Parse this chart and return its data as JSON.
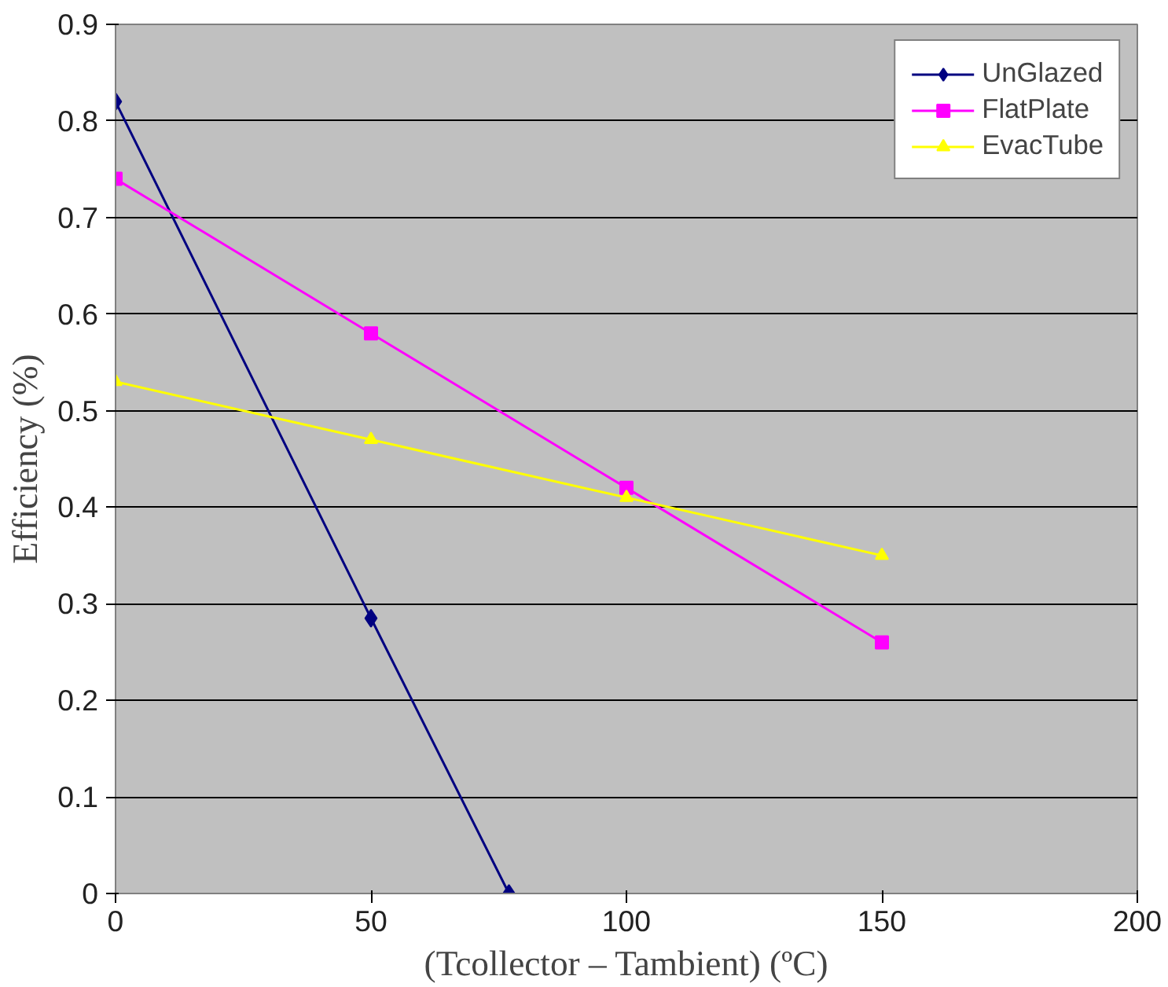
{
  "chart_data": {
    "type": "line",
    "xlabel": "(Tcollector – Tambient) (ºC)",
    "ylabel": "Efficiency (%)",
    "xlim": [
      0,
      200
    ],
    "xticks": [
      0,
      50,
      100,
      150,
      200
    ],
    "ylim": [
      0,
      0.9
    ],
    "yticks": [
      0,
      0.1,
      0.2,
      0.3,
      0.4,
      0.5,
      0.6,
      0.7,
      0.8,
      0.9
    ],
    "grid": "y",
    "legend": "top right",
    "series": [
      {
        "name": "UnGlazed",
        "color": "#000080",
        "marker": "diamond",
        "x": [
          0,
          50,
          77
        ],
        "values": [
          0.82,
          0.285,
          0
        ]
      },
      {
        "name": "FlatPlate",
        "color": "#ff00ff",
        "marker": "square",
        "x": [
          0,
          50,
          100,
          150
        ],
        "values": [
          0.74,
          0.58,
          0.42,
          0.26
        ]
      },
      {
        "name": "EvacTube",
        "color": "#ffff00",
        "marker": "triangle",
        "x": [
          0,
          50,
          100,
          150
        ],
        "values": [
          0.53,
          0.47,
          0.41,
          0.35
        ]
      }
    ]
  }
}
